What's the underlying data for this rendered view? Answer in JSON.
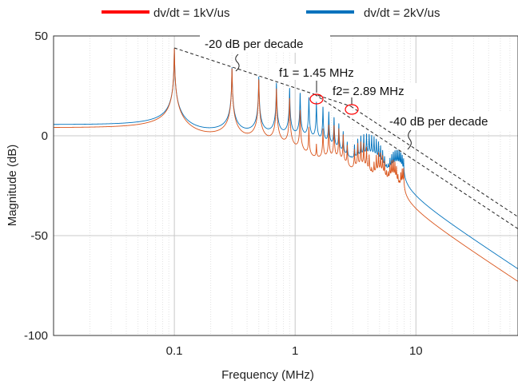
{
  "chart_data": {
    "type": "line",
    "xlabel": "Frequency (MHz)",
    "ylabel": "Magnitude (dB)",
    "xscale": "log",
    "xlim": [
      0.01,
      70
    ],
    "ylim": [
      -100,
      50
    ],
    "xticks": [
      {
        "value": 0.1,
        "label": "0.1"
      },
      {
        "value": 1,
        "label": "1"
      },
      {
        "value": 10,
        "label": "10"
      }
    ],
    "yticks": [
      {
        "value": 50,
        "label": "50"
      },
      {
        "value": 0,
        "label": "0"
      },
      {
        "value": -50,
        "label": "-50"
      },
      {
        "value": -100,
        "label": "-100"
      }
    ],
    "grid": true,
    "legend_position": "top",
    "series": [
      {
        "name": "dv/dt = 1kV/us",
        "color": "#ff0000",
        "line_color": "#d95319",
        "corner_freq_mhz": 1.45
      },
      {
        "name": "dv/dt = 2kV/us",
        "color": "#0072bd",
        "line_color": "#0072bd",
        "corner_freq_mhz": 2.89
      }
    ],
    "fundamental_mhz": 0.1,
    "envelope_peak_db": 44,
    "annotations": [
      {
        "id": "slope20",
        "text": "-20 dB per decade"
      },
      {
        "id": "f1",
        "text": "f1 = 1.45 MHz"
      },
      {
        "id": "f2",
        "text": "f2= 2.89 MHz"
      },
      {
        "id": "slope40",
        "text": "-40 dB per decade"
      }
    ]
  }
}
